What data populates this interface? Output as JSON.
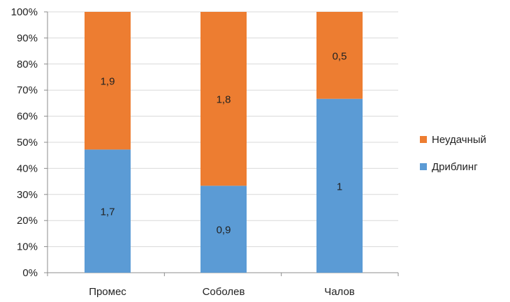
{
  "chart_data": {
    "type": "bar",
    "stacking": "percent",
    "categories": [
      "Промес",
      "Соболев",
      "Чалов"
    ],
    "series": [
      {
        "name": "Дриблинг",
        "values": [
          1.7,
          0.9,
          1
        ],
        "labels": [
          "1,7",
          "0,9",
          "1"
        ],
        "color": "#5B9BD5"
      },
      {
        "name": "Неудачный",
        "values": [
          1.9,
          1.8,
          0.5
        ],
        "labels": [
          "1,9",
          "1,8",
          "0,5"
        ],
        "color": "#ED7D31"
      }
    ],
    "y_ticks": [
      "0%",
      "10%",
      "20%",
      "30%",
      "40%",
      "50%",
      "60%",
      "70%",
      "80%",
      "90%",
      "100%"
    ],
    "ylim": [
      0,
      100
    ],
    "grid": true,
    "legend_position": "right",
    "legend_order": [
      "Неудачный",
      "Дриблинг"
    ]
  }
}
